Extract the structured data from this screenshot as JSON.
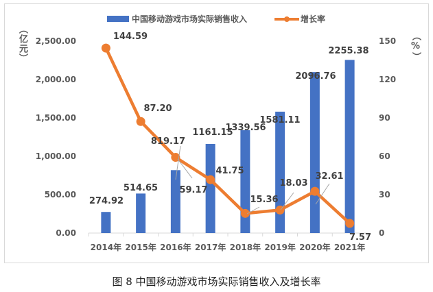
{
  "chart_data": {
    "type": "bar+line",
    "title": "",
    "categories": [
      "2014年",
      "2015年",
      "2016年",
      "2017年",
      "2018年",
      "2019年",
      "2020年",
      "2021年"
    ],
    "series": [
      {
        "name": "中国移动游戏市场实际销售收入",
        "type": "bar",
        "axis": "left",
        "color": "#4472c4",
        "values": [
          274.92,
          514.65,
          819.17,
          1161.15,
          1339.56,
          1581.11,
          2096.76,
          2255.38
        ],
        "labels": [
          "274.92",
          "514.65",
          "819.17",
          "1161.15",
          "1339.56",
          "1581.11",
          "2096.76",
          "2255.38"
        ]
      },
      {
        "name": "增长率",
        "type": "line",
        "axis": "right",
        "color": "#ed7d31",
        "values": [
          144.59,
          87.2,
          59.17,
          41.75,
          15.36,
          18.03,
          32.61,
          7.57
        ],
        "labels": [
          "144.59",
          "87.20",
          "59.17",
          "41.75",
          "15.36",
          "18.03",
          "32.61",
          "7.57"
        ]
      }
    ],
    "left_axis": {
      "label": "（亿元）",
      "ylim": [
        0,
        2500
      ],
      "ticks": [
        "0.00",
        "500.00",
        "1,000.00",
        "1,500.00",
        "2,000.00",
        "2,500.00"
      ]
    },
    "right_axis": {
      "label": "（%）",
      "ylim": [
        0,
        150
      ],
      "ticks": [
        "0",
        "30",
        "60",
        "90",
        "120",
        "150"
      ]
    },
    "legend": "top",
    "grid": false
  },
  "caption": "图 8 中国移动游戏市场实际销售收入及增长率"
}
